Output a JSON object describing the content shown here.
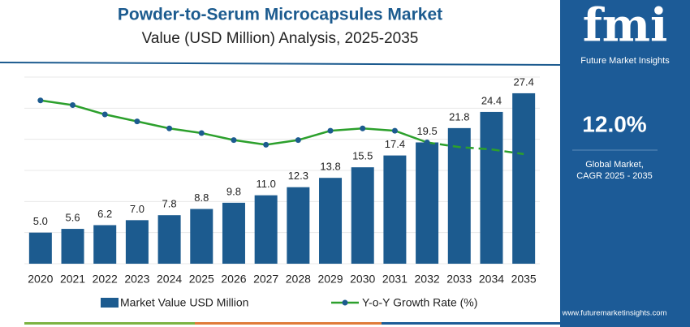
{
  "chart_data": {
    "type": "bar-line",
    "title": "Powder-to-Serum Microcapsules Market",
    "subtitle": "Value (USD Million) Analysis, 2025-2035",
    "categories": [
      "2020",
      "2021",
      "2022",
      "2023",
      "2024",
      "2025",
      "2026",
      "2027",
      "2028",
      "2029",
      "2030",
      "2031",
      "2032",
      "2033",
      "2034",
      "2035"
    ],
    "series": [
      {
        "name": "Market Value USD Million",
        "color": "#1c5b8f",
        "values": [
          5.0,
          5.6,
          6.2,
          7.0,
          7.8,
          8.8,
          9.8,
          11.0,
          12.3,
          13.8,
          15.5,
          17.4,
          19.5,
          21.8,
          24.4,
          27.4
        ],
        "value_labels": [
          "5.0",
          "5.6",
          "6.2",
          "7.0",
          "7.8",
          "8.8",
          "9.8",
          "11.0",
          "12.3",
          "13.8",
          "15.5",
          "17.4",
          "19.5",
          "21.8",
          "24.4",
          "27.4"
        ]
      },
      {
        "name": "Y-o-Y Growth Rate (%)",
        "color": "#2ca02c",
        "marker_color": "#1c5b8f",
        "axis": "y2",
        "dash_from": 12,
        "values": [
          15.0,
          14.8,
          14.4,
          14.1,
          13.8,
          13.6,
          13.3,
          13.1,
          13.3,
          13.7,
          13.8,
          13.7,
          13.2,
          13.0,
          12.9,
          12.7
        ]
      }
    ],
    "ylim": [
      0,
      30
    ],
    "yticks": [
      0,
      5,
      10,
      15,
      20,
      25,
      30
    ],
    "y2lim": [
      8,
      16
    ],
    "grid": true
  },
  "sidebar": {
    "logo": "fmi",
    "logo_caption": "Future Market Insights",
    "cagr": "12.0%",
    "cagr_caption_1": "Global Market,",
    "cagr_caption_2": "CAGR 2025 - 2035",
    "website": "www.futuremarketinsights.com"
  }
}
